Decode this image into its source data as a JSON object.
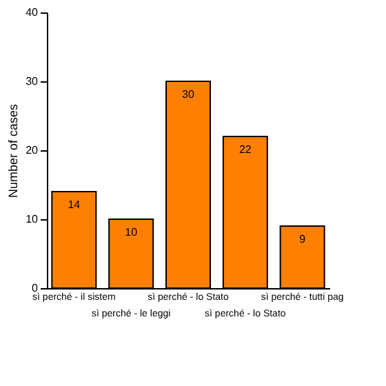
{
  "chart_data": {
    "type": "bar",
    "ylabel": "Number of cases",
    "categories": [
      "sì perché - il sistem",
      "sì perché - le leggi",
      "sì perché - lo Stato",
      "sì perché - lo Stato",
      "sì perché - tutti pag"
    ],
    "values": [
      14,
      10,
      30,
      22,
      9
    ],
    "color": "#ff8000",
    "ylim": [
      0,
      40
    ],
    "yticks": [
      0,
      10,
      20,
      30,
      40
    ],
    "grid": false,
    "data_labels": true
  }
}
